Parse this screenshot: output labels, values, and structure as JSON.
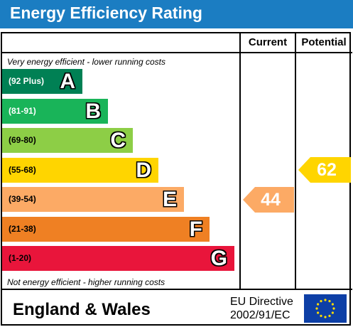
{
  "header": {
    "title": "Energy Efficiency Rating"
  },
  "columns": {
    "current": "Current",
    "potential": "Potential"
  },
  "captions": {
    "top": "Very energy efficient - lower running costs",
    "bottom": "Not energy efficient - higher running costs"
  },
  "chart_data": {
    "type": "bar",
    "title": "Energy Efficiency Rating",
    "categories": [
      "A",
      "B",
      "C",
      "D",
      "E",
      "F",
      "G"
    ],
    "bands": [
      {
        "letter": "A",
        "range": "(92 Plus)",
        "color": "#008054",
        "text_color": "#ffffff"
      },
      {
        "letter": "B",
        "range": "(81-91)",
        "color": "#19b459",
        "text_color": "#ffffff"
      },
      {
        "letter": "C",
        "range": "(69-80)",
        "color": "#8dce46",
        "text_color": "#000000"
      },
      {
        "letter": "D",
        "range": "(55-68)",
        "color": "#ffd500",
        "text_color": "#000000"
      },
      {
        "letter": "E",
        "range": "(39-54)",
        "color": "#fcaa65",
        "text_color": "#000000"
      },
      {
        "letter": "F",
        "range": "(21-38)",
        "color": "#ef8023",
        "text_color": "#000000"
      },
      {
        "letter": "G",
        "range": "(1-20)",
        "color": "#e9153b",
        "text_color": "#000000"
      }
    ],
    "current": {
      "value": 44,
      "band": "E",
      "color": "#fcaa65"
    },
    "potential": {
      "value": 62,
      "band": "D",
      "color": "#ffd500"
    }
  },
  "footer": {
    "region": "England & Wales",
    "directive_line1": "EU Directive",
    "directive_line2": "2002/91/EC"
  },
  "colors": {
    "header_bg": "#1b7dc2",
    "eu_flag_bg": "#0d3fa6",
    "eu_star": "#ffdd00"
  },
  "icons": {
    "flag": "eu-flag-icon"
  }
}
